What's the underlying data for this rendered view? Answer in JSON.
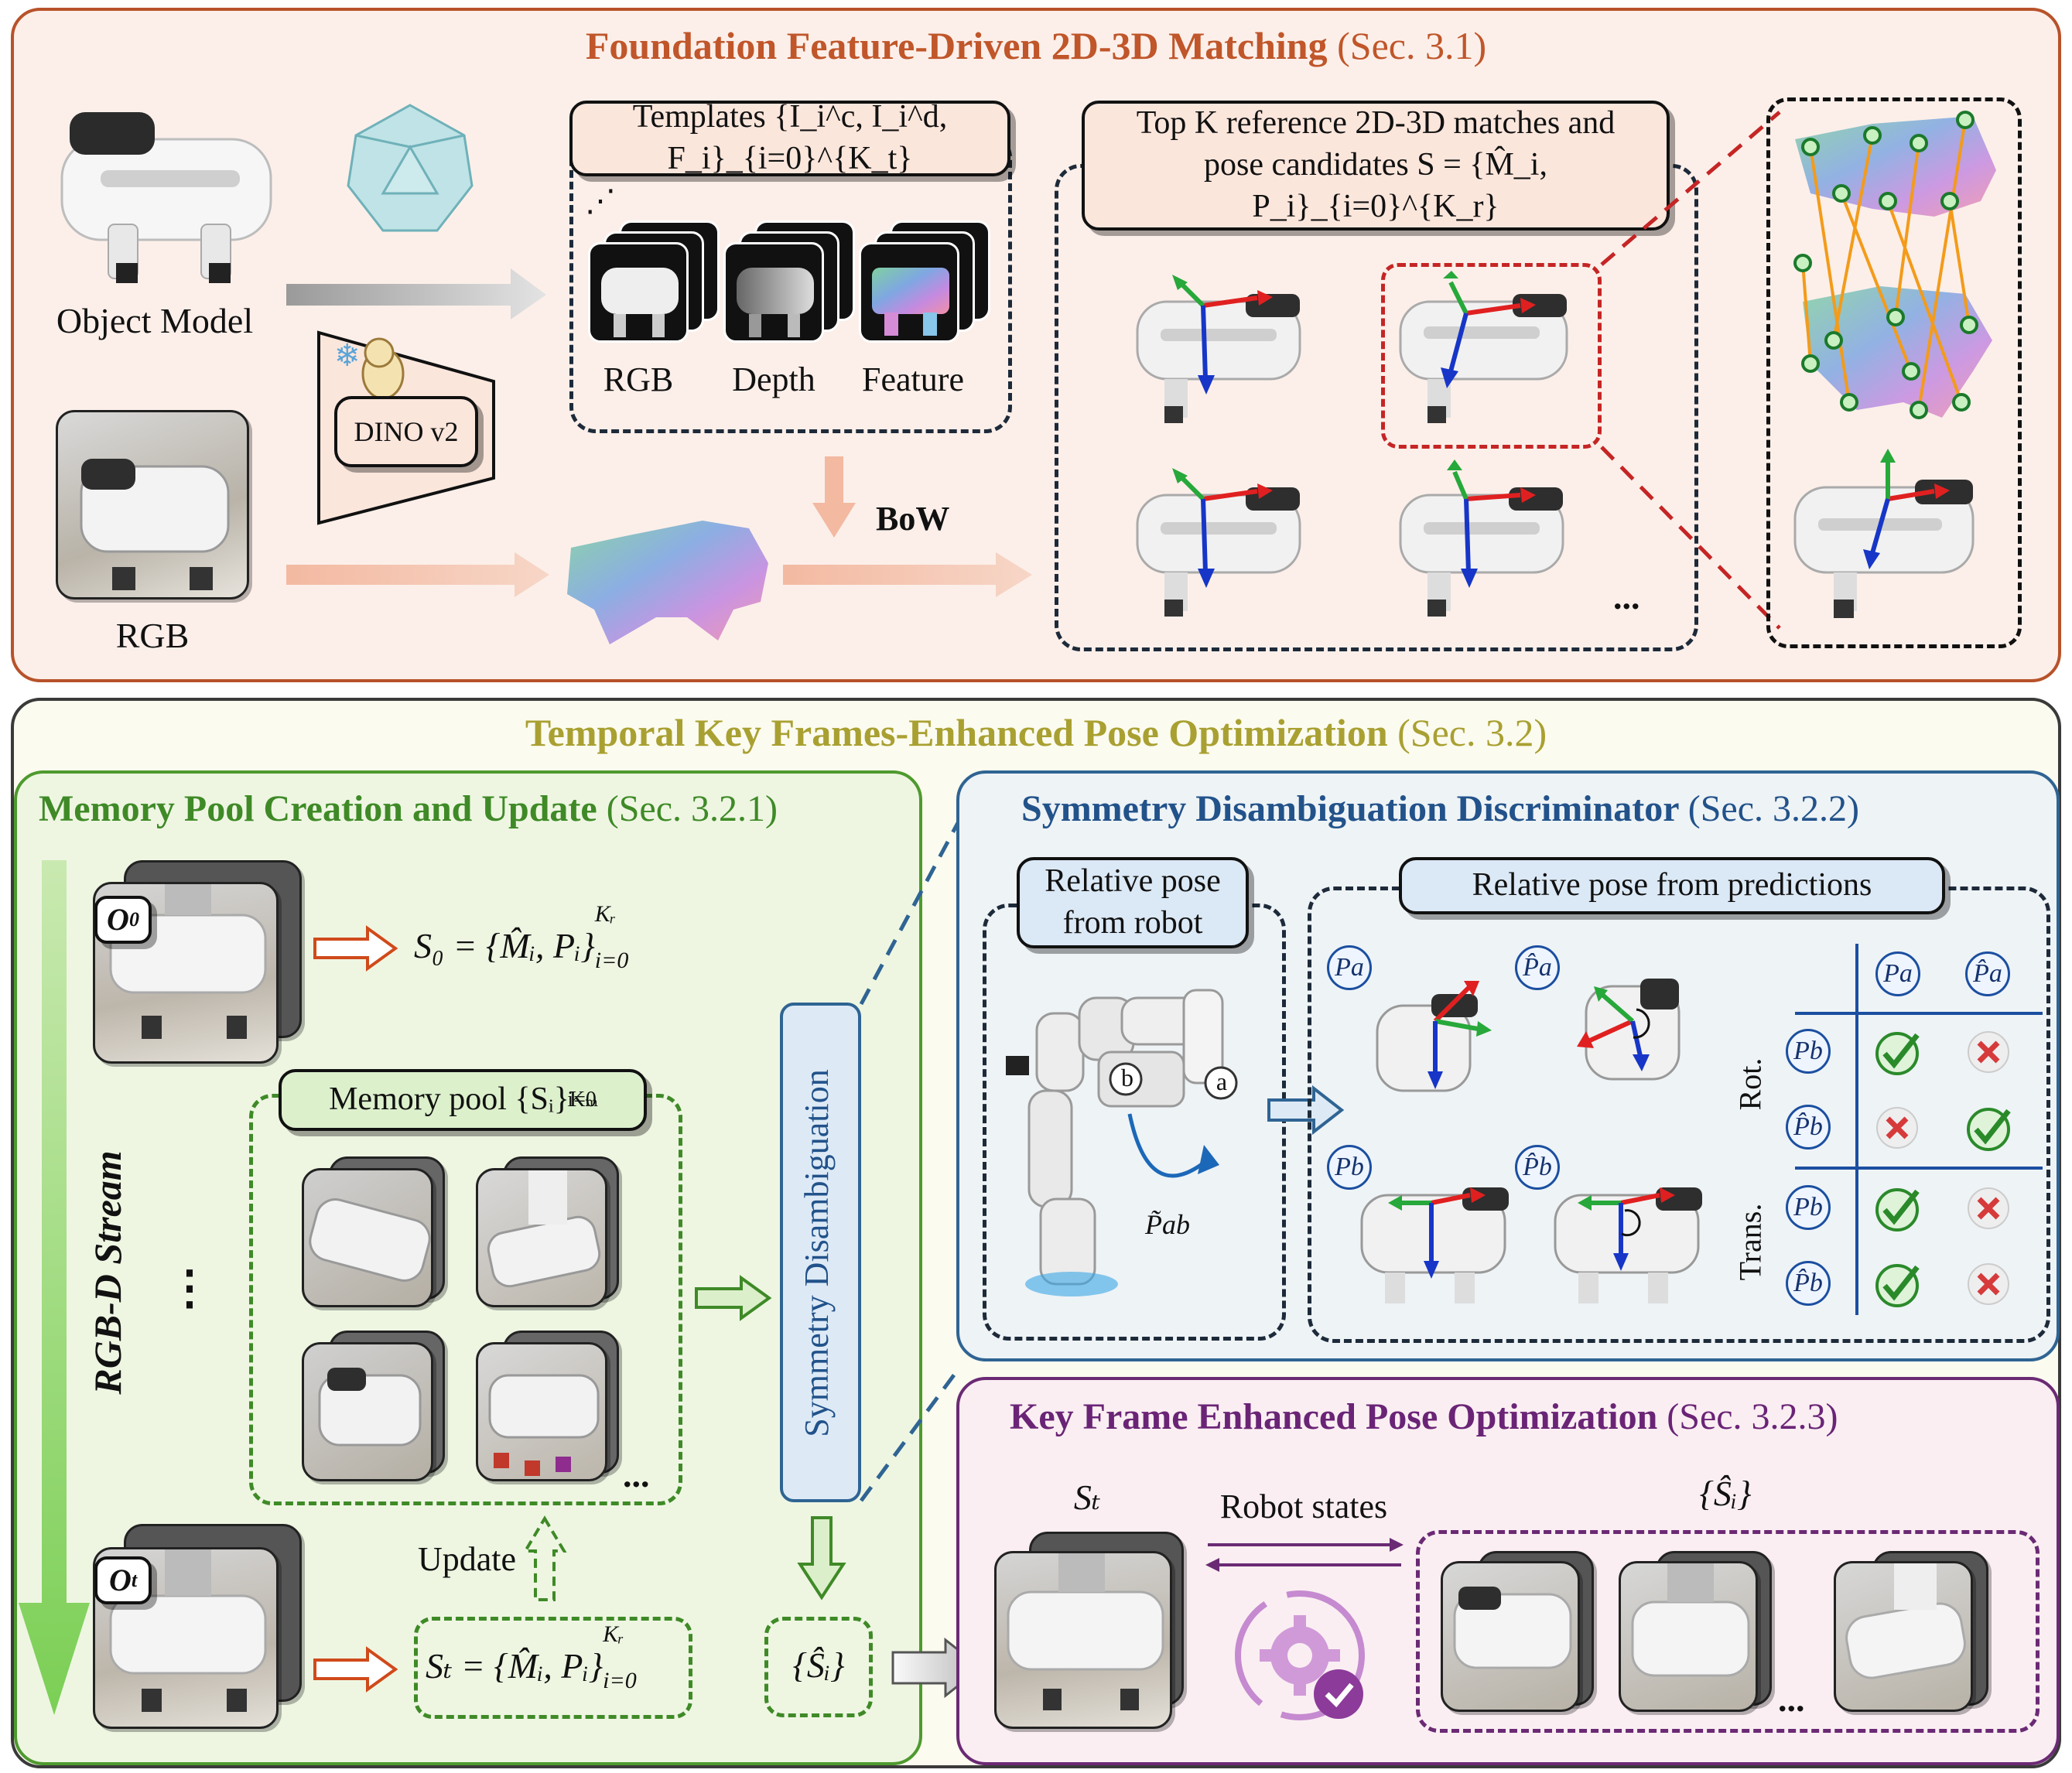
{
  "top": {
    "title": "Foundation Feature-Driven 2D-3D Matching",
    "sec": "(Sec. 3.1)",
    "object_model_label": "Object Model",
    "rgb_label": "RGB",
    "dino_label": "DINO v2",
    "templates_label": "Templates {I_i^c, I_i^d, F_i}_{i=0}^{K_t}",
    "tpl_rgb": "RGB",
    "tpl_depth": "Depth",
    "tpl_feature": "Feature",
    "bow_label": "BoW",
    "topk_line1": "Top K reference 2D-3D matches and",
    "topk_line2": "pose candidates S = {M̂_i, P_i}_{i=0}^{K_r}",
    "ellipsis": "..."
  },
  "bottom": {
    "title": "Temporal Key Frames-Enhanced Pose Optimization",
    "sec": "(Sec. 3.2)"
  },
  "memory": {
    "title": "Memory Pool Creation and Update",
    "sec": "(Sec. 3.2.1)",
    "o0": "O",
    "o0_sub": "0",
    "ot": "O",
    "ot_sub": "t",
    "s0_formula": "S₀ = {M̂ᵢ, Pᵢ}",
    "st_formula": "Sₜ = {M̂ᵢ, Pᵢ}",
    "kr_sup": "Kᵣ",
    "i0_sub": "i=0",
    "pool_label": "Memory pool {Sᵢ}",
    "pool_sup": "Kₘ",
    "stream_label": "RGB-D Stream",
    "update_label": "Update",
    "ellipsis_v": "⋮",
    "ellipsis": "...",
    "shat": "{Ŝᵢ}",
    "symmetry_box": "Symmetry Disambiguation"
  },
  "symmetry": {
    "title": "Symmetry Disambiguation Discriminator",
    "sec": "(Sec. 3.2.2)",
    "robot_label_line1": "Relative pose",
    "robot_label_line2": "from robot",
    "pred_label": "Relative pose from predictions",
    "pab_label": "P̃ab",
    "a": "a",
    "b": "b",
    "pa": "Pa",
    "pa_hat": "P̂a",
    "pb": "Pb",
    "pb_hat": "P̂b",
    "rot_label": "Rot.",
    "trans_label": "Trans."
  },
  "keyframe": {
    "title": "Key Frame Enhanced Pose Optimization",
    "sec": "(Sec. 3.2.3)",
    "st_label": "Sₜ",
    "robot_states": "Robot states",
    "shat_label": "{Ŝᵢ}",
    "ellipsis": "..."
  },
  "colors": {
    "top_border": "#b8522a",
    "top_fill": "#fcefe9",
    "top_title": "#c0562a",
    "bottom_border": "#3a3a3a",
    "bottom_fill": "#fbfbef",
    "bottom_title": "#a9a032",
    "memory_border": "#4e9a2e",
    "memory_fill": "#eef6e2",
    "memory_title": "#3f8a27",
    "sym_border": "#2f6493",
    "sym_fill": "#eef3f6",
    "sym_title": "#22528a",
    "kf_border": "#6b2a74",
    "kf_fill": "#faeef2",
    "kf_title": "#6a2476"
  }
}
